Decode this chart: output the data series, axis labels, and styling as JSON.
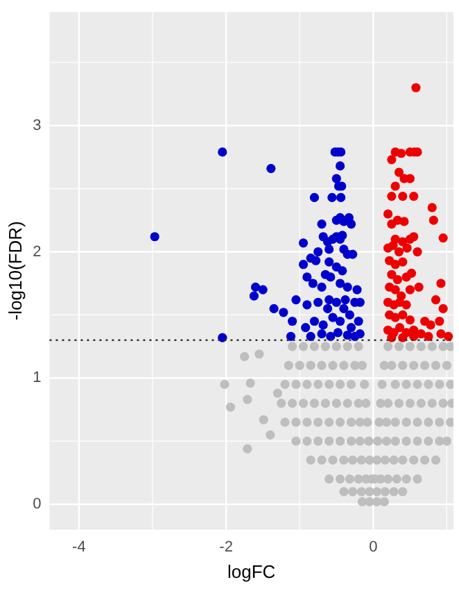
{
  "chart_data": {
    "type": "scatter",
    "xlabel": "logFC",
    "ylabel": "-log10(FDR)",
    "xlim": [
      -4.4,
      1.09
    ],
    "ylim": [
      -0.2,
      3.9
    ],
    "xticks": [
      -4,
      -2,
      0
    ],
    "yticks": [
      0,
      1,
      2,
      3
    ],
    "grid": true,
    "marker": "circle",
    "legend": false,
    "ref_lines": [
      {
        "axis": "y",
        "value": 1.3,
        "color": "#333333",
        "line_style": "dotted"
      }
    ],
    "series": [
      {
        "color": "#bebebe",
        "x": [
          -1.1,
          -0.95,
          -0.8,
          -0.65,
          -0.5,
          -0.35,
          -0.2,
          0.2,
          0.35,
          0.5,
          0.65,
          0.8,
          0.95,
          1.05,
          -1.15,
          -1.0,
          -0.85,
          -0.7,
          -0.55,
          -0.4,
          -0.25,
          -0.15,
          0.15,
          0.25,
          0.4,
          0.55,
          0.7,
          0.85,
          1.0,
          -1.2,
          -1.05,
          -0.9,
          -0.75,
          -0.6,
          -0.45,
          -0.3,
          -0.12,
          0.12,
          0.3,
          0.45,
          0.6,
          0.75,
          0.9,
          1.05,
          -1.25,
          -1.1,
          -0.95,
          -0.8,
          -0.65,
          -0.5,
          -0.35,
          -0.2,
          -0.1,
          0.1,
          0.2,
          0.35,
          0.5,
          0.65,
          0.8,
          0.95,
          1.07,
          -1.2,
          -1.05,
          -0.9,
          -0.75,
          -0.6,
          -0.45,
          -0.3,
          -0.18,
          -0.08,
          0.08,
          0.18,
          0.3,
          0.45,
          0.6,
          0.75,
          0.9,
          1.05,
          -1.05,
          -0.9,
          -0.75,
          -0.6,
          -0.45,
          -0.3,
          -0.18,
          -0.06,
          0.06,
          0.18,
          0.3,
          0.45,
          0.6,
          0.75,
          0.9,
          1.0,
          -0.85,
          -0.7,
          -0.55,
          -0.4,
          -0.28,
          -0.16,
          -0.05,
          0.05,
          0.16,
          0.28,
          0.4,
          0.55,
          0.7,
          0.85,
          -0.6,
          -0.45,
          -0.32,
          -0.2,
          -0.1,
          -0.02,
          0.02,
          0.1,
          0.2,
          0.32,
          0.45,
          0.6,
          -0.4,
          -0.28,
          -0.16,
          -0.05,
          0.05,
          0.16,
          0.28,
          0.4,
          -0.15,
          -0.05,
          0.05,
          0.15,
          -2.02,
          -1.94,
          -1.71,
          -1.67,
          -1.71,
          -1.75,
          -1.55,
          -1.3,
          -1.4,
          -1.49
        ],
        "values": [
          1.25,
          1.25,
          1.25,
          1.25,
          1.25,
          1.25,
          1.25,
          1.25,
          1.25,
          1.25,
          1.25,
          1.25,
          1.25,
          1.25,
          1.1,
          1.1,
          1.1,
          1.1,
          1.1,
          1.1,
          1.1,
          1.1,
          1.1,
          1.1,
          1.1,
          1.1,
          1.1,
          1.1,
          1.1,
          0.95,
          0.95,
          0.95,
          0.95,
          0.95,
          0.95,
          0.95,
          0.95,
          0.95,
          0.95,
          0.95,
          0.95,
          0.95,
          0.95,
          0.95,
          0.8,
          0.8,
          0.8,
          0.8,
          0.8,
          0.8,
          0.8,
          0.8,
          0.8,
          0.8,
          0.8,
          0.8,
          0.8,
          0.8,
          0.8,
          0.8,
          0.8,
          0.65,
          0.65,
          0.65,
          0.65,
          0.65,
          0.65,
          0.65,
          0.65,
          0.65,
          0.65,
          0.65,
          0.65,
          0.65,
          0.65,
          0.65,
          0.65,
          0.65,
          0.5,
          0.5,
          0.5,
          0.5,
          0.5,
          0.5,
          0.5,
          0.5,
          0.5,
          0.5,
          0.5,
          0.5,
          0.5,
          0.5,
          0.5,
          0.5,
          0.35,
          0.35,
          0.35,
          0.35,
          0.35,
          0.35,
          0.35,
          0.35,
          0.35,
          0.35,
          0.35,
          0.35,
          0.35,
          0.35,
          0.2,
          0.2,
          0.2,
          0.2,
          0.2,
          0.2,
          0.2,
          0.2,
          0.2,
          0.2,
          0.2,
          0.2,
          0.1,
          0.1,
          0.1,
          0.1,
          0.1,
          0.1,
          0.1,
          0.1,
          0.02,
          0.02,
          0.02,
          0.02,
          0.95,
          0.77,
          0.83,
          0.96,
          0.44,
          1.17,
          1.19,
          0.88,
          0.55,
          0.67
        ]
      },
      {
        "color": "#0000cc",
        "x": [
          -2.97,
          -2.05,
          -1.39,
          -2.05,
          -0.52,
          -0.48,
          -0.44,
          -0.45,
          -0.5,
          -0.47,
          -0.43,
          -0.8,
          -0.56,
          -0.44,
          -0.5,
          -0.45,
          -0.4,
          -0.33,
          -0.3,
          -0.7,
          -0.62,
          -0.55,
          -0.5,
          -0.45,
          -0.42,
          -0.68,
          -0.95,
          -0.75,
          -0.6,
          -0.4,
          -0.35,
          -0.28,
          -0.85,
          -0.78,
          -0.6,
          -0.5,
          -0.95,
          -0.42,
          -0.65,
          -0.58,
          -1.6,
          -1.62,
          -1.5,
          -0.9,
          -0.82,
          -0.7,
          -0.45,
          -0.35,
          -0.22,
          -1.35,
          -1.22,
          -1.05,
          -0.9,
          -0.75,
          -0.6,
          -0.5,
          -0.38,
          -0.25,
          -0.18,
          -1.1,
          -0.92,
          -0.8,
          -0.68,
          -0.55,
          -0.45,
          -0.32,
          -0.2,
          -1.12,
          -0.85,
          -0.7,
          -0.58,
          -0.48,
          -0.35,
          -0.25,
          -0.18,
          -0.4,
          -0.3,
          -0.62
        ],
        "values": [
          2.12,
          2.79,
          2.66,
          1.32,
          2.79,
          2.79,
          2.79,
          2.68,
          2.58,
          2.52,
          2.52,
          2.43,
          2.43,
          2.43,
          2.25,
          2.27,
          2.24,
          2.27,
          2.22,
          2.22,
          2.08,
          2.1,
          2.12,
          2.1,
          2.13,
          2.12,
          2.07,
          2.0,
          2.02,
          2.02,
          1.98,
          1.98,
          1.95,
          1.93,
          1.92,
          1.88,
          1.9,
          1.85,
          1.82,
          1.8,
          1.72,
          1.65,
          1.7,
          1.8,
          1.75,
          1.72,
          1.75,
          1.72,
          1.7,
          1.55,
          1.52,
          1.62,
          1.58,
          1.6,
          1.62,
          1.6,
          1.62,
          1.6,
          1.6,
          1.45,
          1.4,
          1.45,
          1.42,
          1.48,
          1.45,
          1.5,
          1.45,
          1.33,
          1.33,
          1.35,
          1.33,
          1.36,
          1.34,
          1.33,
          1.35,
          1.55,
          1.4,
          1.55
        ]
      },
      {
        "color": "#ee0000",
        "x": [
          0.58,
          0.3,
          0.38,
          0.5,
          0.56,
          0.6,
          0.25,
          0.35,
          0.42,
          0.5,
          0.3,
          0.25,
          0.4,
          0.55,
          0.8,
          0.82,
          0.2,
          0.25,
          0.33,
          0.42,
          0.95,
          0.3,
          0.4,
          0.5,
          0.55,
          0.2,
          0.27,
          0.35,
          0.46,
          0.6,
          0.22,
          0.3,
          0.4,
          0.25,
          0.33,
          0.45,
          0.52,
          0.22,
          0.3,
          0.38,
          0.5,
          0.62,
          0.92,
          0.2,
          0.28,
          0.36,
          0.45,
          0.85,
          0.95,
          0.22,
          0.3,
          0.4,
          0.5,
          0.7,
          0.78,
          0.9,
          0.2,
          0.28,
          0.36,
          0.45,
          0.55,
          0.65,
          0.75,
          0.92,
          1.02,
          0.25,
          0.4,
          0.55
        ],
        "values": [
          3.3,
          2.79,
          2.78,
          2.79,
          2.79,
          2.79,
          2.73,
          2.63,
          2.58,
          2.58,
          2.52,
          2.44,
          2.44,
          2.44,
          2.35,
          2.25,
          2.3,
          2.22,
          2.25,
          2.24,
          2.11,
          2.1,
          2.08,
          2.1,
          2.12,
          2.03,
          2.05,
          2.0,
          2.03,
          2.0,
          1.93,
          1.9,
          1.92,
          1.82,
          1.78,
          1.8,
          1.83,
          1.72,
          1.7,
          1.65,
          1.7,
          1.72,
          1.75,
          1.6,
          1.58,
          1.6,
          1.58,
          1.62,
          1.55,
          1.5,
          1.48,
          1.5,
          1.46,
          1.45,
          1.42,
          1.45,
          1.38,
          1.36,
          1.4,
          1.36,
          1.38,
          1.35,
          1.33,
          1.35,
          1.33,
          1.32,
          1.32,
          1.33
        ]
      }
    ]
  }
}
